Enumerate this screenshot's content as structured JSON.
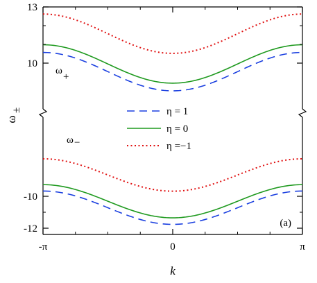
{
  "chart_data": {
    "type": "line",
    "xlabel": "k",
    "ylabel": "ω",
    "ylabel_sub": "±",
    "panel_label": "(a)",
    "x_ticks": [
      {
        "value": -3.14159,
        "label": "-π"
      },
      {
        "value": 0,
        "label": "0"
      },
      {
        "value": 3.14159,
        "label": "π"
      }
    ],
    "xlim": [
      -3.14159,
      3.14159
    ],
    "y_segments": [
      {
        "name": "upper",
        "ylim": [
          8,
          13
        ],
        "ticks": [
          {
            "value": 13,
            "label": "13"
          },
          {
            "value": 10,
            "label": "10"
          }
        ],
        "annotation": {
          "label": "ω",
          "sub": "+"
        }
      },
      {
        "name": "lower",
        "ylim": [
          -12,
          -6.6
        ],
        "ticks": [
          {
            "value": -10,
            "label": "-10"
          },
          {
            "value": -12,
            "label": "-12"
          }
        ],
        "annotation": {
          "label": "ω",
          "sub": "−"
        }
      }
    ],
    "series": [
      {
        "name": "η = 1",
        "color": "#1a3fe0",
        "dash": "dashed",
        "segment": "upper",
        "y_edge": 10.57,
        "y_center": 8.52
      },
      {
        "name": "η = 0",
        "color": "#1f9a1f",
        "dash": "solid",
        "segment": "upper",
        "y_edge": 10.98,
        "y_center": 8.93
      },
      {
        "name": "η =−1",
        "color": "#e01010",
        "dash": "dotted",
        "segment": "upper",
        "y_edge": 12.62,
        "y_center": 10.52
      },
      {
        "name": "η = 1",
        "color": "#1a3fe0",
        "dash": "dashed",
        "segment": "lower",
        "y_edge": -9.67,
        "y_center": -11.76
      },
      {
        "name": "η = 0",
        "color": "#1f9a1f",
        "dash": "solid",
        "segment": "lower",
        "y_edge": -9.27,
        "y_center": -11.35
      },
      {
        "name": "η =−1",
        "color": "#e01010",
        "dash": "dotted",
        "segment": "lower",
        "y_edge": -7.65,
        "y_center": -9.68
      }
    ],
    "legend": [
      {
        "label": "η = 1",
        "color": "#1a3fe0",
        "dash": "dashed"
      },
      {
        "label": "η = 0",
        "color": "#1f9a1f",
        "dash": "solid"
      },
      {
        "label": "η =−1",
        "color": "#e01010",
        "dash": "dotted"
      }
    ]
  }
}
